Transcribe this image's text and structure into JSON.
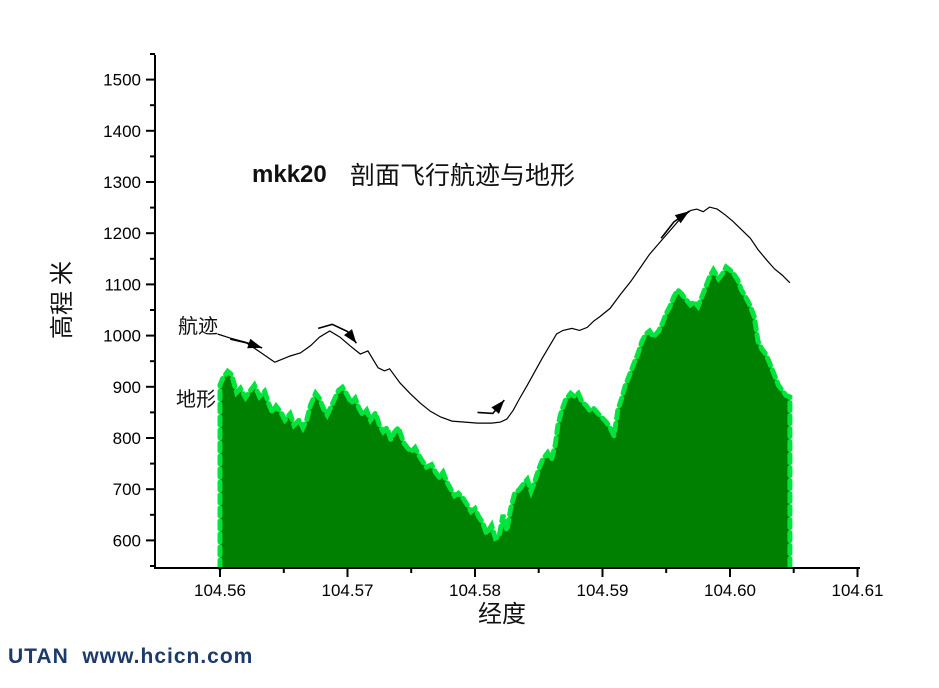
{
  "page": {
    "background": "#ffffff"
  },
  "title": {
    "prefix": "mkk20",
    "main": "剖面飞行航迹与地形"
  },
  "labels": {
    "trajectory": "航迹",
    "terrain": "地形"
  },
  "footer": {
    "brand": "UTAN  www.hcicn.com",
    "color": "#1c3a6c"
  },
  "chart_data": {
    "type": "area",
    "title": "mkk20 剖面飞行航迹与地形",
    "xlabel": "经度",
    "ylabel": "高程 米",
    "xlim": [
      104.5549,
      104.6102
    ],
    "ylim": [
      546,
      1548
    ],
    "grid": false,
    "x_major_ticks": [
      104.56,
      104.57,
      104.58,
      104.59,
      104.6,
      104.61
    ],
    "x_minor_ticks": [
      104.565,
      104.575,
      104.585,
      104.595,
      104.605
    ],
    "x_tick_decimals": 2,
    "y_major_ticks": [
      600,
      700,
      800,
      900,
      1000,
      1100,
      1200,
      1300,
      1400,
      1500
    ],
    "y_minor_ticks": [
      550,
      650,
      750,
      850,
      950,
      1050,
      1150,
      1250,
      1350,
      1450,
      1550
    ],
    "colors": {
      "terrain_fill": "#008000",
      "terrain_edge": "#00e43c",
      "trajectory": "#000000"
    },
    "series": [
      {
        "name": "地形",
        "type": "area",
        "fill": "#008000",
        "edge": "#00e43c",
        "points": [
          [
            104.56,
            903
          ],
          [
            104.5602,
            916
          ],
          [
            104.5606,
            930
          ],
          [
            104.5609,
            924
          ],
          [
            104.5613,
            889
          ],
          [
            104.5616,
            897
          ],
          [
            104.562,
            879
          ],
          [
            104.5624,
            893
          ],
          [
            104.5627,
            903
          ],
          [
            104.5631,
            881
          ],
          [
            104.5635,
            891
          ],
          [
            104.5638,
            868
          ],
          [
            104.5641,
            850
          ],
          [
            104.5644,
            862
          ],
          [
            104.5648,
            849
          ],
          [
            104.5651,
            835
          ],
          [
            104.5655,
            847
          ],
          [
            104.5658,
            825
          ],
          [
            104.5662,
            835
          ],
          [
            104.5665,
            820
          ],
          [
            104.5668,
            835
          ],
          [
            104.5671,
            864
          ],
          [
            104.5675,
            887
          ],
          [
            104.5678,
            877
          ],
          [
            104.5681,
            858
          ],
          [
            104.5684,
            845
          ],
          [
            104.5687,
            860
          ],
          [
            104.569,
            877
          ],
          [
            104.5693,
            893
          ],
          [
            104.5696,
            899
          ],
          [
            104.57,
            883
          ],
          [
            104.5703,
            868
          ],
          [
            104.5706,
            877
          ],
          [
            104.5709,
            858
          ],
          [
            104.5712,
            845
          ],
          [
            104.5715,
            854
          ],
          [
            104.5718,
            835
          ],
          [
            104.5722,
            849
          ],
          [
            104.5725,
            825
          ],
          [
            104.5728,
            812
          ],
          [
            104.5731,
            820
          ],
          [
            104.5734,
            797
          ],
          [
            104.5737,
            812
          ],
          [
            104.574,
            820
          ],
          [
            104.5744,
            791
          ],
          [
            104.5747,
            781
          ],
          [
            104.575,
            773
          ],
          [
            104.5753,
            781
          ],
          [
            104.5756,
            766
          ],
          [
            104.5759,
            754
          ],
          [
            104.5762,
            743
          ],
          [
            104.5766,
            748
          ],
          [
            104.5769,
            733
          ],
          [
            104.5772,
            723
          ],
          [
            104.5775,
            733
          ],
          [
            104.5778,
            714
          ],
          [
            104.5781,
            700
          ],
          [
            104.5784,
            687
          ],
          [
            104.5787,
            692
          ],
          [
            104.5791,
            681
          ],
          [
            104.5794,
            669
          ],
          [
            104.5797,
            656
          ],
          [
            104.58,
            662
          ],
          [
            104.5803,
            646
          ],
          [
            104.5806,
            635
          ],
          [
            104.5809,
            613
          ],
          [
            104.5813,
            629
          ],
          [
            104.5816,
            604
          ],
          [
            104.5819,
            608
          ],
          [
            104.5822,
            650
          ],
          [
            104.5825,
            619
          ],
          [
            104.5828,
            662
          ],
          [
            104.5831,
            691
          ],
          [
            104.5835,
            700
          ],
          [
            104.5838,
            710
          ],
          [
            104.5841,
            719
          ],
          [
            104.5844,
            696
          ],
          [
            104.5847,
            716
          ],
          [
            104.585,
            739
          ],
          [
            104.5853,
            758
          ],
          [
            104.5857,
            771
          ],
          [
            104.586,
            758
          ],
          [
            104.5863,
            787
          ],
          [
            104.5865,
            825
          ],
          [
            104.5868,
            854
          ],
          [
            104.5871,
            874
          ],
          [
            104.5875,
            887
          ],
          [
            104.5878,
            881
          ],
          [
            104.5881,
            887
          ],
          [
            104.5884,
            870
          ],
          [
            104.5887,
            864
          ],
          [
            104.589,
            854
          ],
          [
            104.5893,
            858
          ],
          [
            104.5896,
            849
          ],
          [
            104.59,
            839
          ],
          [
            104.5903,
            831
          ],
          [
            104.5906,
            820
          ],
          [
            104.5909,
            804
          ],
          [
            104.5912,
            854
          ],
          [
            104.5915,
            877
          ],
          [
            104.5918,
            903
          ],
          [
            104.5922,
            928
          ],
          [
            104.5925,
            947
          ],
          [
            104.5928,
            966
          ],
          [
            104.5931,
            989
          ],
          [
            104.5934,
            1003
          ],
          [
            104.5937,
            1009
          ],
          [
            104.594,
            997
          ],
          [
            104.5944,
            1009
          ],
          [
            104.5947,
            1024
          ],
          [
            104.595,
            1043
          ],
          [
            104.5953,
            1057
          ],
          [
            104.5956,
            1076
          ],
          [
            104.5959,
            1089
          ],
          [
            104.5962,
            1082
          ],
          [
            104.5965,
            1072
          ],
          [
            104.5969,
            1060
          ],
          [
            104.5972,
            1066
          ],
          [
            104.5975,
            1057
          ],
          [
            104.5978,
            1076
          ],
          [
            104.5981,
            1095
          ],
          [
            104.5984,
            1115
          ],
          [
            104.5987,
            1128
          ],
          [
            104.5991,
            1111
          ],
          [
            104.5994,
            1120
          ],
          [
            104.5997,
            1134
          ],
          [
            104.6,
            1128
          ],
          [
            104.6003,
            1120
          ],
          [
            104.6006,
            1109
          ],
          [
            104.6009,
            1089
          ],
          [
            104.6013,
            1072
          ],
          [
            104.6016,
            1057
          ],
          [
            104.6019,
            1037
          ],
          [
            104.6022,
            989
          ],
          [
            104.6025,
            974
          ],
          [
            104.6028,
            964
          ],
          [
            104.6031,
            947
          ],
          [
            104.6035,
            922
          ],
          [
            104.6038,
            903
          ],
          [
            104.6041,
            893
          ],
          [
            104.6044,
            883
          ],
          [
            104.6047,
            880
          ]
        ]
      },
      {
        "name": "航迹",
        "type": "line",
        "color": "#000000",
        "points": [
          [
            104.5598,
            1003
          ],
          [
            104.5608,
            995
          ],
          [
            104.562,
            987
          ],
          [
            104.563,
            970
          ],
          [
            104.5643,
            948
          ],
          [
            104.565,
            955
          ],
          [
            104.5655,
            960
          ],
          [
            104.5663,
            966
          ],
          [
            104.5671,
            980
          ],
          [
            104.5678,
            997
          ],
          [
            104.5686,
            1009
          ],
          [
            104.5694,
            997
          ],
          [
            104.5702,
            980
          ],
          [
            104.571,
            964
          ],
          [
            104.5716,
            970
          ],
          [
            104.5724,
            937
          ],
          [
            104.5729,
            931
          ],
          [
            104.5733,
            935
          ],
          [
            104.5741,
            908
          ],
          [
            104.5749,
            887
          ],
          [
            104.5757,
            868
          ],
          [
            104.5765,
            852
          ],
          [
            104.5773,
            841
          ],
          [
            104.5782,
            833
          ],
          [
            104.5792,
            831
          ],
          [
            104.5802,
            829
          ],
          [
            104.5813,
            829
          ],
          [
            104.582,
            831
          ],
          [
            104.5825,
            837
          ],
          [
            104.583,
            854
          ],
          [
            104.5835,
            877
          ],
          [
            104.5841,
            903
          ],
          [
            104.5847,
            930
          ],
          [
            104.5853,
            957
          ],
          [
            104.5859,
            982
          ],
          [
            104.5864,
            1003
          ],
          [
            104.5869,
            1010
          ],
          [
            104.5876,
            1014
          ],
          [
            104.5882,
            1010
          ],
          [
            104.5888,
            1016
          ],
          [
            104.5893,
            1028
          ],
          [
            104.5898,
            1037
          ],
          [
            104.5906,
            1053
          ],
          [
            104.5914,
            1080
          ],
          [
            104.5922,
            1105
          ],
          [
            104.5929,
            1130
          ],
          [
            104.5937,
            1159
          ],
          [
            104.5945,
            1182
          ],
          [
            104.5953,
            1205
          ],
          [
            104.5961,
            1228
          ],
          [
            104.5969,
            1244
          ],
          [
            104.5974,
            1247
          ],
          [
            104.5979,
            1242
          ],
          [
            104.5984,
            1251
          ],
          [
            104.599,
            1247
          ],
          [
            104.5996,
            1236
          ],
          [
            104.6002,
            1224
          ],
          [
            104.6009,
            1207
          ],
          [
            104.6016,
            1190
          ],
          [
            104.6022,
            1168
          ],
          [
            104.6029,
            1147
          ],
          [
            104.6035,
            1130
          ],
          [
            104.6041,
            1118
          ],
          [
            104.6047,
            1103
          ]
        ]
      }
    ],
    "annotations": {
      "arrows": [
        {
          "points": [
            [
              104.5608,
              993
            ],
            [
              104.5622,
              985
            ],
            [
              104.5633,
              976
            ]
          ]
        },
        {
          "points": [
            [
              104.5677,
              1014
            ],
            [
              104.5688,
              1022
            ],
            [
              104.57,
              1008
            ],
            [
              104.5707,
              985
            ]
          ]
        },
        {
          "points": [
            [
              104.5802,
              850
            ],
            [
              104.5814,
              848
            ],
            [
              104.5823,
              874
            ]
          ]
        },
        {
          "points": [
            [
              104.5946,
              1190
            ],
            [
              104.5956,
              1222
            ],
            [
              104.5968,
              1243
            ]
          ]
        }
      ]
    }
  }
}
